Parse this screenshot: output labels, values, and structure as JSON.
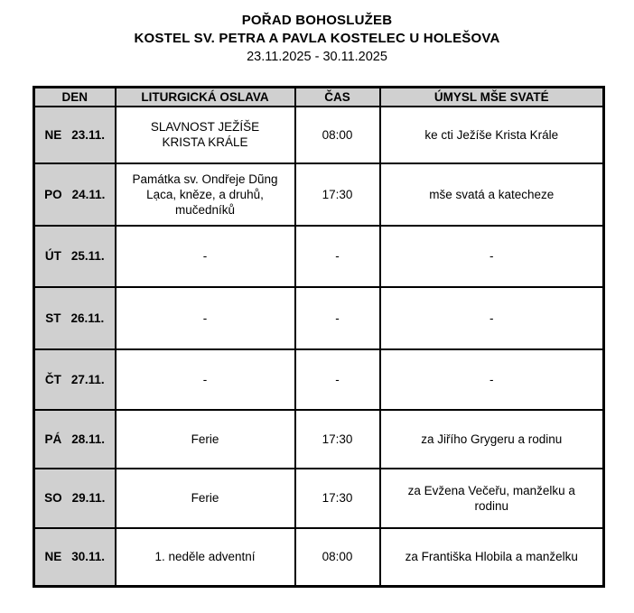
{
  "header": {
    "title": "POŘAD BOHOSLUŽEB",
    "subtitle": "KOSTEL SV. PETRA A PAVLA KOSTELEC U HOLEŠOVA",
    "date_range": "23.11.2025 - 30.11.2025"
  },
  "table": {
    "columns": [
      "DEN",
      "LITURGICKÁ OSLAVA",
      "ČAS",
      "ÚMYSL MŠE SVATÉ"
    ],
    "rows": [
      {
        "day": "NE",
        "date": "23.11.",
        "celebration": "SLAVNOST JEŽÍŠE\nKRISTA KRÁLE",
        "time": "08:00",
        "intention": "ke cti Ježíše Krista Krále"
      },
      {
        "day": "PO",
        "date": "24.11.",
        "celebration": "Památka sv. Ondřeje Dũng\nLạca, kněze, a druhů,\nmučedníků",
        "time": "17:30",
        "intention": "mše svatá a katecheze"
      },
      {
        "day": "ÚT",
        "date": "25.11.",
        "celebration": "-",
        "time": "-",
        "intention": "-"
      },
      {
        "day": "ST",
        "date": "26.11.",
        "celebration": "-",
        "time": "-",
        "intention": "-"
      },
      {
        "day": "ČT",
        "date": "27.11.",
        "celebration": "-",
        "time": "-",
        "intention": "-"
      },
      {
        "day": "PÁ",
        "date": "28.11.",
        "celebration": "Ferie",
        "time": "17:30",
        "intention": "za Jiřího Grygeru a rodinu"
      },
      {
        "day": "SO",
        "date": "29.11.",
        "celebration": "Ferie",
        "time": "17:30",
        "intention": "za Evžena Večeřu, manželku a\nrodinu"
      },
      {
        "day": "NE",
        "date": "30.11.",
        "celebration": "1. neděle adventní",
        "time": "08:00",
        "intention": "za Františka Hlobila a manželku"
      }
    ]
  },
  "colors": {
    "header_bg": "#d0d0d0",
    "border": "#000000",
    "page_bg": "#ffffff"
  }
}
